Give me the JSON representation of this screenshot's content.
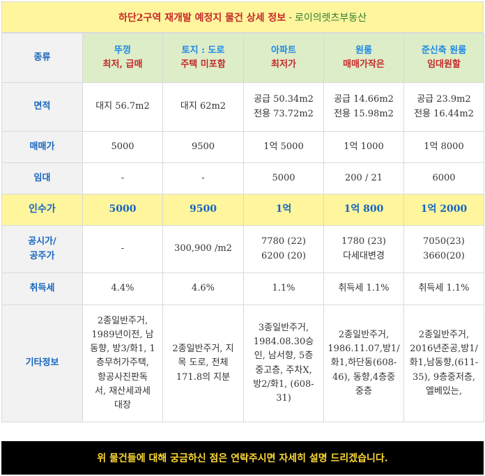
{
  "title": {
    "main": "하단2구역 재개발 예정지 물건 상세 정보",
    "separator": "-",
    "brand": "로이의렛츠부동산"
  },
  "header": {
    "label": "종류",
    "columns": [
      {
        "line1": "뚜껑",
        "line2": "최저, 급매"
      },
      {
        "line1": "토지 : 도로",
        "line2": "주택 미포함"
      },
      {
        "line1": "아파트",
        "line2": "최저가"
      },
      {
        "line1": "원룸",
        "line2": "매매가작은"
      },
      {
        "line1": "준신축 원룸",
        "line2": "임대원할"
      }
    ]
  },
  "rows": {
    "area": {
      "label": "면적",
      "cells": [
        {
          "line1": "대지 56.7m2",
          "line2": ""
        },
        {
          "line1": "대지 62m2",
          "line2": ""
        },
        {
          "line1": "공급 50.34m2",
          "line2": "전용 73.72m2"
        },
        {
          "line1": "공급 14.66m2",
          "line2": "전용 15.98m2"
        },
        {
          "line1": "공급 23.9m2",
          "line2": "전용 16.44m2"
        }
      ]
    },
    "sale": {
      "label": "매매가",
      "cells": [
        "5000",
        "9500",
        "1억 5000",
        "1억 1000",
        "1억 8000"
      ]
    },
    "lease": {
      "label": "임대",
      "cells": [
        "-",
        "-",
        "5000",
        "200 / 21",
        "6000"
      ]
    },
    "takeover": {
      "label": "인수가",
      "cells": [
        "5000",
        "9500",
        "1억",
        "1억 800",
        "1억 2000"
      ]
    },
    "official": {
      "label_line1": "공시가/",
      "label_line2": "공주가",
      "cells": [
        {
          "line1": "-",
          "line2": ""
        },
        {
          "line1": "300,900 /m2",
          "line2": ""
        },
        {
          "line1": "7780 (22)",
          "line2": "6200 (20)"
        },
        {
          "line1": "1780 (23)",
          "line2": "다세대변경"
        },
        {
          "line1": "7050(23)",
          "line2": "3660(20)"
        }
      ]
    },
    "acquisition_tax": {
      "label": "취득세",
      "cells": [
        "4.4%",
        "4.6%",
        "1.1%",
        "취득세 1.1%",
        "취득세 1.1%"
      ]
    },
    "etc": {
      "label": "기타정보",
      "cells": [
        [
          "2종일반주거,",
          "1989년이전, 남",
          "동향, 방3/화1, 1",
          "층무허가주택,",
          "항공사진판독",
          "서, 재산세과세",
          "대장"
        ],
        [
          "2종일반주거, 지",
          "목 도로, 전체",
          "171.8의 지분"
        ],
        [
          "3종일반주거,",
          "1984.08.30승",
          "인, 남서향, 5층",
          "중고층, 주차X,",
          "방2/화1, (608-",
          "31)"
        ],
        [
          "2종일반주거,",
          "1986.11.07,방1/",
          "화1,하단동(608-",
          "46), 동향,4층중",
          "중층"
        ],
        [
          "2종일반주거,",
          "2016년준공,방1/",
          "화1,남동향,(611-",
          "35), 9층중저층,",
          "엘베있는,"
        ]
      ]
    }
  },
  "footer": {
    "text": "위 물건들에 대해 궁금하신 점은 연락주시면 자세히 설명 드리겠습니다."
  }
}
